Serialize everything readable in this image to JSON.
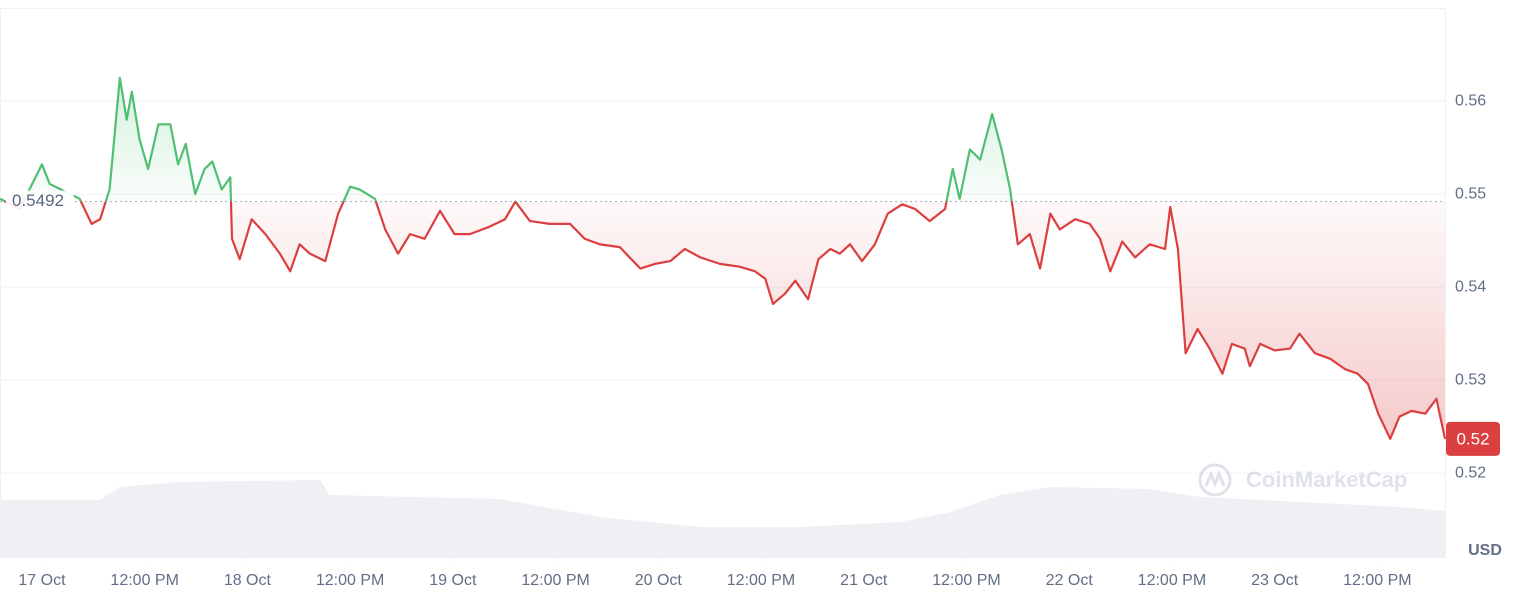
{
  "chart_data": {
    "type": "line",
    "xlim": [
      -4.9,
      163.9
    ],
    "xticks": [
      {
        "value": 0,
        "label": "17 Oct"
      },
      {
        "value": 12,
        "label": "12:00 PM"
      },
      {
        "value": 24,
        "label": "18 Oct"
      },
      {
        "value": 36,
        "label": "12:00 PM"
      },
      {
        "value": 48,
        "label": "19 Oct"
      },
      {
        "value": 60,
        "label": "12:00 PM"
      },
      {
        "value": 72,
        "label": "20 Oct"
      },
      {
        "value": 84,
        "label": "12:00 PM"
      },
      {
        "value": 96,
        "label": "21 Oct"
      },
      {
        "value": 108,
        "label": "12:00 PM"
      },
      {
        "value": 120,
        "label": "22 Oct"
      },
      {
        "value": 132,
        "label": "12:00 PM"
      },
      {
        "value": 144,
        "label": "23 Oct"
      },
      {
        "value": 156,
        "label": "12:00 PM"
      }
    ],
    "ylim": [
      0.511,
      0.57
    ],
    "yticks": [
      0.52,
      0.53,
      0.54,
      0.55,
      0.56
    ],
    "y_unit": "USD",
    "grid": true,
    "baseline": {
      "value": 0.5492,
      "label": "0.5492"
    },
    "current_price": {
      "value": 0.5237,
      "label": "0.52"
    },
    "up_color": "#4fbf73",
    "down_color": "#db3f3f",
    "watermark": "CoinMarketCap",
    "x": [
      -4.9,
      -2.6,
      0,
      0.9,
      4.4,
      5.8,
      6.8,
      7.9,
      9.1,
      9.9,
      10.5,
      11.4,
      12.4,
      13.6,
      15.0,
      15.9,
      16.8,
      17.9,
      19.0,
      19.9,
      21.0,
      22.0,
      22.2,
      23.1,
      24.5,
      26.1,
      27.8,
      29.0,
      30.1,
      31.3,
      33.1,
      34.6,
      36.0,
      37.1,
      38.9,
      40.1,
      41.6,
      43.0,
      44.7,
      46.5,
      48.2,
      50.0,
      52.3,
      54.1,
      55.3,
      57.0,
      59.3,
      61.7,
      63.4,
      65.2,
      67.5,
      69.9,
      71.6,
      73.4,
      75.1,
      76.9,
      79.2,
      81.5,
      83.3,
      84.5,
      85.4,
      86.8,
      88.0,
      89.5,
      90.7,
      92.1,
      93.2,
      94.4,
      95.8,
      97.3,
      98.8,
      100.5,
      102.0,
      103.7,
      105.5,
      106.4,
      107.2,
      108.4,
      109.6,
      111.0,
      112.1,
      113.1,
      114.0,
      115.4,
      116.6,
      117.8,
      118.9,
      120.7,
      122.4,
      123.6,
      124.8,
      126.2,
      127.7,
      129.4,
      131.2,
      131.8,
      132.7,
      133.6,
      135.0,
      136.4,
      137.9,
      139.0,
      140.5,
      141.1,
      142.3,
      144.0,
      145.8,
      146.9,
      148.7,
      150.5,
      152.2,
      153.7,
      154.9,
      156.1,
      157.5,
      158.6,
      160.0,
      161.6,
      162.9,
      163.9
    ],
    "values": [
      0.5495,
      0.5484,
      0.5532,
      0.5511,
      0.5495,
      0.5468,
      0.5473,
      0.5505,
      0.5625,
      0.558,
      0.561,
      0.5559,
      0.5527,
      0.5575,
      0.5575,
      0.5532,
      0.5554,
      0.55,
      0.5527,
      0.5535,
      0.5505,
      0.5518,
      0.5452,
      0.543,
      0.5473,
      0.5457,
      0.5436,
      0.5417,
      0.5446,
      0.5436,
      0.5428,
      0.5479,
      0.5508,
      0.5505,
      0.5495,
      0.5462,
      0.5436,
      0.5457,
      0.5452,
      0.5482,
      0.5457,
      0.5457,
      0.5465,
      0.5473,
      0.5492,
      0.5471,
      0.5468,
      0.5468,
      0.5452,
      0.5446,
      0.5443,
      0.542,
      0.5425,
      0.5428,
      0.5441,
      0.5432,
      0.5425,
      0.5422,
      0.5417,
      0.5409,
      0.5382,
      0.5393,
      0.5407,
      0.5387,
      0.543,
      0.5441,
      0.5436,
      0.5446,
      0.5428,
      0.5446,
      0.5479,
      0.5489,
      0.5484,
      0.5471,
      0.5484,
      0.5527,
      0.5495,
      0.5548,
      0.5537,
      0.5586,
      0.5548,
      0.5505,
      0.5446,
      0.5457,
      0.542,
      0.5479,
      0.5462,
      0.5473,
      0.5468,
      0.5452,
      0.5417,
      0.5449,
      0.5432,
      0.5446,
      0.5441,
      0.5486,
      0.5441,
      0.5329,
      0.5355,
      0.5334,
      0.5307,
      0.5339,
      0.5334,
      0.5315,
      0.5339,
      0.5332,
      0.5334,
      0.535,
      0.5329,
      0.5323,
      0.5312,
      0.5307,
      0.5296,
      0.5264,
      0.5237,
      0.5261,
      0.5267,
      0.5264,
      0.528,
      0.5237
    ],
    "volume": {
      "color": "#eef0f4",
      "lim": [
        0,
        100
      ],
      "x": [
        -4.9,
        6.8,
        9.1,
        16.1,
        32.5,
        33.6,
        53.5,
        65.2,
        76.9,
        88.6,
        100.2,
        106.1,
        111.9,
        117.8,
        129.4,
        135.3,
        147.0,
        158.6,
        163.9
      ],
      "values": [
        57,
        57,
        70,
        75,
        77,
        62,
        58,
        40,
        30,
        30,
        35,
        45,
        62,
        70,
        68,
        60,
        55,
        50,
        46
      ]
    }
  }
}
